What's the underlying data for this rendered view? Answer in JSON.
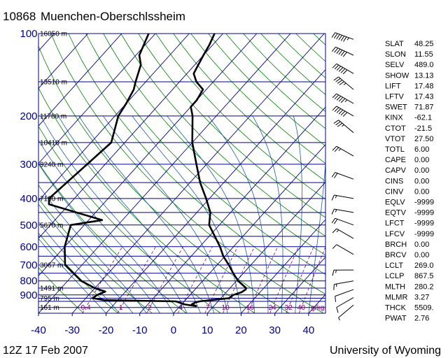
{
  "header": {
    "station_id": "10868",
    "station_name": "Muenchen-Oberschlssheim"
  },
  "footer": {
    "time": "12Z 17 Feb 2007",
    "source": "University of Wyoming"
  },
  "colors": {
    "isobar": "#00008b",
    "isotherm": "#00008b",
    "dry_adiabat": "#008000",
    "moist_adiabat": "#1e5aa8",
    "mixing_ratio": "#800080",
    "profile": "#000000"
  },
  "chart_data": {
    "type": "line",
    "diagram": "skew-t",
    "pressure_axis_hpa": {
      "range": [
        1050,
        100
      ],
      "scale": "log",
      "tick_labels": [
        100,
        200,
        300,
        400,
        500,
        600,
        700,
        800,
        900
      ]
    },
    "temperature_axis_c": {
      "range": [
        -40,
        45
      ],
      "tick_labels": [
        -40,
        -30,
        -20,
        -10,
        0,
        10,
        20,
        30,
        40
      ]
    },
    "isobars_hpa": [
      100,
      150,
      200,
      250,
      300,
      350,
      400,
      450,
      500,
      550,
      600,
      650,
      700,
      750,
      800,
      850,
      900,
      925,
      950,
      1000
    ],
    "height_labels": [
      {
        "p": 100,
        "text": "16050 m"
      },
      {
        "p": 150,
        "text": "13510 m"
      },
      {
        "p": 200,
        "text": "11780 m"
      },
      {
        "p": 250,
        "text": "10410 m"
      },
      {
        "p": 300,
        "text": "9240 m"
      },
      {
        "p": 400,
        "text": "7190 m"
      },
      {
        "p": 500,
        "text": "5670 m"
      },
      {
        "p": 700,
        "text": "3067 m"
      },
      {
        "p": 850,
        "text": "1491 m"
      },
      {
        "p": 925,
        "text": "795 m"
      },
      {
        "p": 1000,
        "text": "161 m"
      }
    ],
    "mixing_ratio_labels_gkg": [
      "0.4",
      "1",
      "2",
      "4",
      "7",
      "10",
      "16",
      "24",
      "32",
      "40",
      "g/kg"
    ],
    "temperature_profile": [
      {
        "p": 990,
        "t": 5.0
      },
      {
        "p": 975,
        "t": 3.0
      },
      {
        "p": 960,
        "t": 3.5
      },
      {
        "p": 950,
        "t": 4.5
      },
      {
        "p": 940,
        "t": 7.5
      },
      {
        "p": 925,
        "t": 12.5
      },
      {
        "p": 900,
        "t": 12.8
      },
      {
        "p": 880,
        "t": 14.5
      },
      {
        "p": 860,
        "t": 15.0
      },
      {
        "p": 850,
        "t": 14.8
      },
      {
        "p": 800,
        "t": 10.5
      },
      {
        "p": 750,
        "t": 7.0
      },
      {
        "p": 700,
        "t": 3.5
      },
      {
        "p": 650,
        "t": -0.5
      },
      {
        "p": 600,
        "t": -4.0
      },
      {
        "p": 500,
        "t": -13.0
      },
      {
        "p": 450,
        "t": -16.0
      },
      {
        "p": 400,
        "t": -21.0
      },
      {
        "p": 350,
        "t": -27.0
      },
      {
        "p": 300,
        "t": -33.0
      },
      {
        "p": 250,
        "t": -40.0
      },
      {
        "p": 200,
        "t": -47.0
      },
      {
        "p": 185,
        "t": -50.0
      },
      {
        "p": 175,
        "t": -50.0
      },
      {
        "p": 160,
        "t": -51.0
      },
      {
        "p": 150,
        "t": -55.0
      },
      {
        "p": 140,
        "t": -58.0
      },
      {
        "p": 120,
        "t": -60.0
      },
      {
        "p": 110,
        "t": -61.0
      },
      {
        "p": 100,
        "t": -62.5
      }
    ],
    "dewpoint_profile": [
      {
        "p": 990,
        "t": 5.0
      },
      {
        "p": 975,
        "t": 1.0
      },
      {
        "p": 950,
        "t": -2.5
      },
      {
        "p": 940,
        "t": -24.0
      },
      {
        "p": 925,
        "t": -28.0
      },
      {
        "p": 900,
        "t": -27.5
      },
      {
        "p": 875,
        "t": -26.0
      },
      {
        "p": 850,
        "t": -30.0
      },
      {
        "p": 800,
        "t": -36.0
      },
      {
        "p": 700,
        "t": -45.0
      },
      {
        "p": 600,
        "t": -50.0
      },
      {
        "p": 500,
        "t": -54.0
      },
      {
        "p": 480,
        "t": -46.0
      },
      {
        "p": 420,
        "t": -66.0
      },
      {
        "p": 400,
        "t": -67.5
      },
      {
        "p": 250,
        "t": -64.0
      },
      {
        "p": 200,
        "t": -69.0
      },
      {
        "p": 180,
        "t": -70.0
      },
      {
        "p": 160,
        "t": -71.5
      },
      {
        "p": 150,
        "t": -73.0
      },
      {
        "p": 130,
        "t": -76.0
      },
      {
        "p": 120,
        "t": -79.0
      },
      {
        "p": 100,
        "t": -82.0
      }
    ],
    "indices": [
      {
        "key": "SLAT",
        "value": "48.25"
      },
      {
        "key": "SLON",
        "value": "11.55"
      },
      {
        "key": "SELV",
        "value": "489.0"
      },
      {
        "key": "SHOW",
        "value": "13.13"
      },
      {
        "key": "LIFT",
        "value": "17.48"
      },
      {
        "key": "LFTV",
        "value": "17.43"
      },
      {
        "key": "SWET",
        "value": "71.87"
      },
      {
        "key": "KINX",
        "value": "-62.1"
      },
      {
        "key": "CTOT",
        "value": "-21.5"
      },
      {
        "key": "VTOT",
        "value": "27.50"
      },
      {
        "key": "TOTL",
        "value": "6.00"
      },
      {
        "key": "CAPE",
        "value": "0.00"
      },
      {
        "key": "CAPV",
        "value": "0.00"
      },
      {
        "key": "CINS",
        "value": "0.00"
      },
      {
        "key": "CINV",
        "value": "0.00"
      },
      {
        "key": "EQLV",
        "value": "-9999"
      },
      {
        "key": "EQTV",
        "value": "-9999"
      },
      {
        "key": "LFCT",
        "value": "-9999"
      },
      {
        "key": "LFCV",
        "value": "-9999"
      },
      {
        "key": "BRCH",
        "value": "0.00"
      },
      {
        "key": "BRCV",
        "value": "0.00"
      },
      {
        "key": "LCLT",
        "value": "269.0"
      },
      {
        "key": "LCLP",
        "value": "867.5"
      },
      {
        "key": "MLTH",
        "value": "280.2"
      },
      {
        "key": "MLMR",
        "value": "3.27"
      },
      {
        "key": "THCK",
        "value": "5509."
      },
      {
        "key": "PWAT",
        "value": "2.76"
      }
    ],
    "wind_barbs": [
      {
        "p": 105,
        "dir": 290,
        "kt": 65
      },
      {
        "p": 120,
        "dir": 295,
        "kt": 60
      },
      {
        "p": 140,
        "dir": 300,
        "kt": 60
      },
      {
        "p": 160,
        "dir": 310,
        "kt": 45
      },
      {
        "p": 180,
        "dir": 300,
        "kt": 55
      },
      {
        "p": 200,
        "dir": 300,
        "kt": 60
      },
      {
        "p": 230,
        "dir": 310,
        "kt": 35
      },
      {
        "p": 280,
        "dir": 300,
        "kt": 25
      },
      {
        "p": 340,
        "dir": 290,
        "kt": 20
      },
      {
        "p": 400,
        "dir": 280,
        "kt": 15
      },
      {
        "p": 450,
        "dir": 280,
        "kt": 15
      },
      {
        "p": 500,
        "dir": 290,
        "kt": 20
      },
      {
        "p": 560,
        "dir": 300,
        "kt": 15
      },
      {
        "p": 640,
        "dir": 300,
        "kt": 10
      },
      {
        "p": 730,
        "dir": 270,
        "kt": 15
      },
      {
        "p": 800,
        "dir": 260,
        "kt": 15
      },
      {
        "p": 860,
        "dir": 250,
        "kt": 10
      },
      {
        "p": 920,
        "dir": 240,
        "kt": 10
      },
      {
        "p": 980,
        "dir": 230,
        "kt": 5
      }
    ]
  }
}
